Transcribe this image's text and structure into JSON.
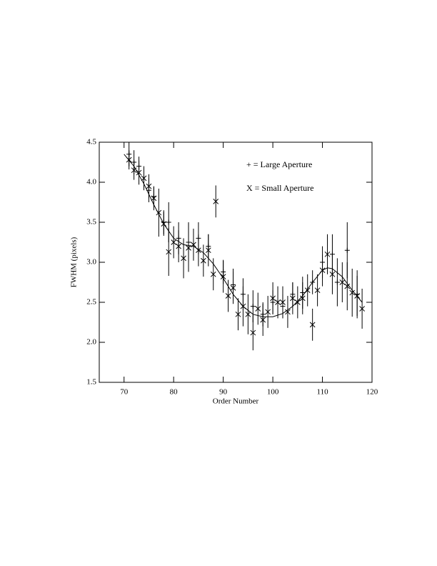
{
  "chart_data": {
    "type": "errorbar",
    "xlabel": "Order Number",
    "ylabel": "FWHM (pixels)",
    "xlim": [
      65,
      120
    ],
    "ylim": [
      1.5,
      4.5
    ],
    "xticks": [
      70,
      80,
      90,
      100,
      110,
      120
    ],
    "yticks": [
      1.5,
      {
        "value": 2,
        "label": "2.0"
      },
      2.5,
      {
        "value": 3,
        "label": "3.0"
      },
      3.5,
      {
        "value": 4,
        "label": "4.0"
      },
      4.5
    ],
    "series": [
      {
        "name": "+ = Large Aperture",
        "marker": "plus",
        "color": "#000000",
        "x": [
          71,
          72,
          73,
          75,
          76,
          78,
          79,
          81,
          83,
          85,
          87,
          90,
          92,
          94,
          96,
          98,
          100,
          102,
          104,
          106,
          108,
          110,
          112,
          113,
          115,
          117
        ],
        "values": [
          4.35,
          4.25,
          4.2,
          3.9,
          3.82,
          3.5,
          3.5,
          3.3,
          3.25,
          3.3,
          3.2,
          2.88,
          2.72,
          2.6,
          2.45,
          2.35,
          2.5,
          2.45,
          2.6,
          2.62,
          2.75,
          3.0,
          3.1,
          2.75,
          3.15,
          2.6
        ],
        "errors": [
          0.15,
          0.15,
          0.12,
          0.15,
          0.12,
          0.15,
          0.25,
          0.2,
          0.25,
          0.2,
          0.15,
          0.15,
          0.2,
          0.2,
          0.2,
          0.15,
          0.15,
          0.15,
          0.15,
          0.2,
          0.15,
          0.2,
          0.25,
          0.3,
          0.35,
          0.3
        ]
      },
      {
        "name": "X = Small Aperture",
        "marker": "cross",
        "color": "#000000",
        "x": [
          71,
          72,
          73,
          74,
          75,
          76,
          77,
          78,
          79,
          80,
          81,
          82,
          83,
          84,
          85,
          86,
          87,
          88,
          88.5,
          90,
          91,
          92,
          93,
          94,
          95,
          96,
          97,
          98,
          99,
          100,
          101,
          102,
          103,
          104,
          105,
          106,
          107,
          108,
          109,
          110,
          111,
          112,
          114,
          115,
          116,
          117,
          118
        ],
        "values": [
          4.28,
          4.15,
          4.12,
          4.05,
          3.95,
          3.8,
          3.62,
          3.48,
          3.13,
          3.25,
          3.2,
          3.05,
          3.18,
          3.22,
          3.15,
          3.02,
          3.15,
          2.85,
          3.76,
          2.82,
          2.58,
          2.68,
          2.35,
          2.45,
          2.35,
          2.12,
          2.42,
          2.28,
          2.38,
          2.55,
          2.5,
          2.5,
          2.38,
          2.55,
          2.5,
          2.55,
          2.65,
          2.22,
          2.65,
          2.9,
          3.1,
          2.85,
          2.75,
          2.7,
          2.62,
          2.58,
          2.42
        ],
        "errors": [
          0.12,
          0.12,
          0.15,
          0.15,
          0.15,
          0.15,
          0.3,
          0.15,
          0.3,
          0.2,
          0.2,
          0.25,
          0.3,
          0.2,
          0.2,
          0.2,
          0.2,
          0.2,
          0.2,
          0.2,
          0.2,
          0.2,
          0.2,
          0.25,
          0.25,
          0.22,
          0.2,
          0.2,
          0.2,
          0.2,
          0.2,
          0.2,
          0.2,
          0.2,
          0.2,
          0.2,
          0.2,
          0.2,
          0.2,
          0.2,
          0.25,
          0.25,
          0.25,
          0.3,
          0.3,
          0.25,
          0.25
        ]
      }
    ],
    "fit": {
      "x": [
        70,
        72,
        74,
        76,
        78,
        80,
        82,
        84,
        86,
        88,
        90,
        92,
        94,
        96,
        98,
        100,
        102,
        104,
        106,
        108,
        110,
        111,
        112,
        114,
        116,
        118
      ],
      "values": [
        4.35,
        4.2,
        3.98,
        3.72,
        3.48,
        3.3,
        3.22,
        3.2,
        3.12,
        2.98,
        2.8,
        2.6,
        2.45,
        2.35,
        2.32,
        2.32,
        2.36,
        2.45,
        2.58,
        2.75,
        2.9,
        2.93,
        2.92,
        2.82,
        2.65,
        2.5
      ]
    }
  }
}
